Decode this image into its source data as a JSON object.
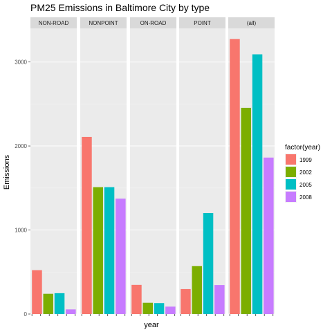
{
  "chart_data": {
    "type": "bar",
    "title": "PM25 Emissions in Baltimore City by type",
    "xlabel": "year",
    "ylabel": "Emissions",
    "ylim": [
      0,
      3400
    ],
    "yticks": [
      0,
      1000,
      2000,
      3000
    ],
    "grid": true,
    "facet_strip_labels": [
      "NON-ROAD",
      "NONPOINT",
      "ON-ROAD",
      "POINT",
      "(all)"
    ],
    "legend": {
      "title": "factor(year)",
      "placement": "right",
      "entries": [
        "1999",
        "2002",
        "2005",
        "2008"
      ],
      "colors": [
        "#F8766D",
        "#7CAE00",
        "#00BFC4",
        "#C77CFF"
      ]
    },
    "facets": [
      {
        "name": "NON-ROAD",
        "values": [
          522,
          241,
          248,
          55
        ]
      },
      {
        "name": "NONPOINT",
        "values": [
          2108,
          1510,
          1510,
          1373
        ]
      },
      {
        "name": "ON-ROAD",
        "values": [
          347,
          134,
          130,
          88
        ]
      },
      {
        "name": "POINT",
        "values": [
          297,
          570,
          1202,
          345
        ]
      },
      {
        "name": "(all)",
        "values": [
          3274,
          2454,
          3091,
          1862
        ]
      }
    ]
  }
}
